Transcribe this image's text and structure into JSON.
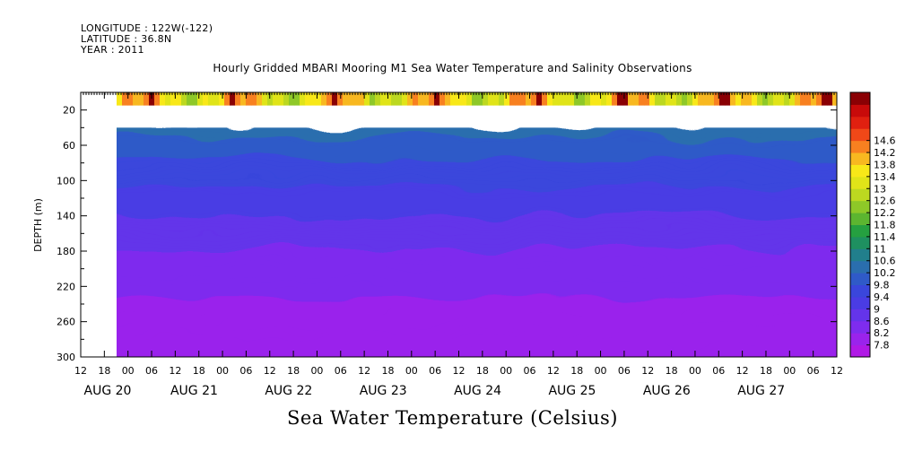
{
  "header": {
    "longitude": "LONGITUDE : 122W(-122)",
    "latitude": "LATITUDE : 36.8N",
    "year": "YEAR : 2011"
  },
  "chart_title": "Hourly Gridded MBARI Mooring M1 Sea Water Temperature and Salinity Observations",
  "footer_title": "Sea Water Temperature (Celsius)",
  "chart_data": {
    "type": "heatmap",
    "title": "Hourly Gridded MBARI Mooring M1 Sea Water Temperature and Salinity Observations",
    "variable": "Sea Water Temperature (Celsius)",
    "ylabel": "DEPTH (m)",
    "ylim": [
      300,
      0
    ],
    "yticks": [
      20,
      60,
      100,
      140,
      180,
      220,
      260,
      300
    ],
    "x_hour_ticks": [
      "12",
      "18",
      "00",
      "06",
      "12",
      "18",
      "00",
      "06",
      "12",
      "18",
      "00",
      "06",
      "12",
      "18",
      "00",
      "06",
      "12",
      "18",
      "00",
      "06",
      "12",
      "18",
      "00",
      "06",
      "12",
      "18",
      "00",
      "06",
      "12",
      "18",
      "00",
      "06",
      "12"
    ],
    "x_day_labels": [
      "AUG 20",
      "AUG 21",
      "AUG 22",
      "AUG 23",
      "AUG 24",
      "AUG 25",
      "AUG 26",
      "AUG 27"
    ],
    "colorbar": {
      "levels": [
        7.8,
        8.2,
        8.6,
        9,
        9.4,
        9.8,
        10.2,
        10.6,
        11,
        11.4,
        11.8,
        12.2,
        12.6,
        13,
        13.4,
        13.8,
        14.2,
        14.6
      ],
      "labels": [
        "7.8",
        "8.2",
        "8.6",
        "9",
        "9.4",
        "9.8",
        "10.2",
        "10.6",
        "11",
        "11.4",
        "11.8",
        "12.2",
        "12.6",
        "13",
        "13.4",
        "13.8",
        "14.2",
        "14.6"
      ],
      "colors": [
        "#b019e6",
        "#9a23ec",
        "#7e2cee",
        "#6434ea",
        "#4a3ce4",
        "#3a46dc",
        "#2f5ac8",
        "#2a6eae",
        "#217f8c",
        "#1e9060",
        "#25a040",
        "#5cb530",
        "#8ec828",
        "#bcd820",
        "#e0e418",
        "#f8e818",
        "#f8b820",
        "#f88020",
        "#f04818",
        "#e02010",
        "#c80a0a",
        "#8a0004"
      ]
    },
    "depth_profile": [
      {
        "depth": 10,
        "temp": 14.0
      },
      {
        "depth": 40,
        "temp": 10.4
      },
      {
        "depth": 60,
        "temp": 10.0
      },
      {
        "depth": 100,
        "temp": 9.5
      },
      {
        "depth": 140,
        "temp": 9.0
      },
      {
        "depth": 180,
        "temp": 8.6
      },
      {
        "depth": 220,
        "temp": 8.3
      },
      {
        "depth": 260,
        "temp": 8.0
      },
      {
        "depth": 300,
        "temp": 7.8
      }
    ],
    "missing_depth_range": [
      15,
      40
    ],
    "legend": "right"
  }
}
